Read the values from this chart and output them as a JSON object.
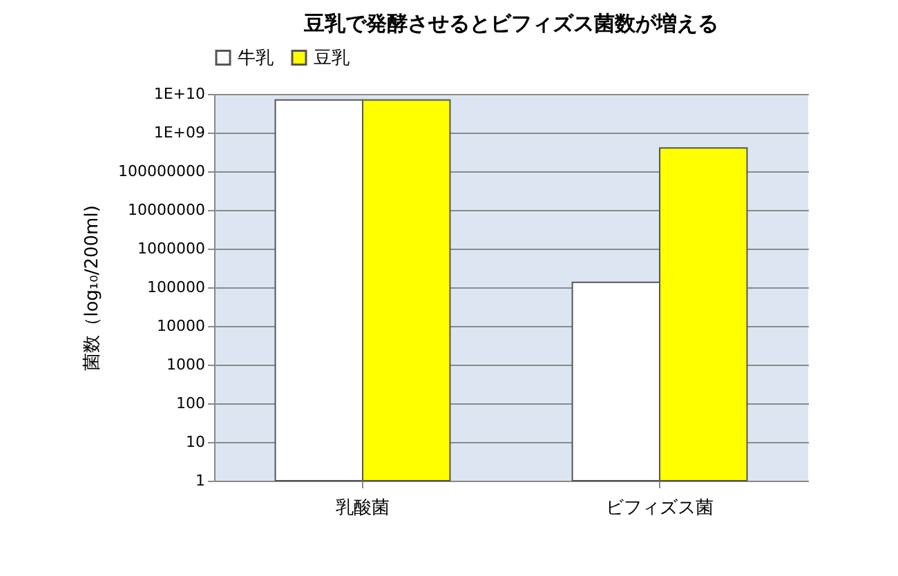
{
  "chart_data": {
    "type": "bar",
    "title": "豆乳で発酵させるとビフィズス菌数が増える",
    "ylabel": "菌数（log₁₀/200ml)",
    "categories": [
      "乳酸菌",
      "ビフィズス菌"
    ],
    "series": [
      {
        "name": "牛乳",
        "color": "#ffffff",
        "values": [
          7000000000,
          135000
        ]
      },
      {
        "name": "豆乳",
        "color": "#ffff00",
        "values": [
          7000000000,
          400000000
        ]
      }
    ],
    "log": true,
    "ylim": [
      1,
      10000000000
    ],
    "yticks": [
      1,
      10,
      100,
      1000,
      10000,
      100000,
      1000000,
      10000000,
      100000000,
      {
        "value": 1000000000,
        "label": "1E+09"
      },
      {
        "value": 10000000000,
        "label": "1E+10"
      }
    ],
    "grid": "y",
    "legend": "top"
  }
}
